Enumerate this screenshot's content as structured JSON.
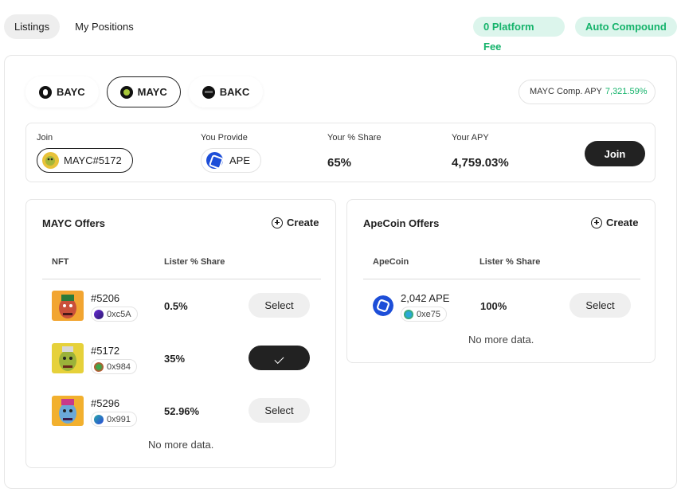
{
  "topnav": {
    "tabs": [
      "Listings",
      "My Positions"
    ],
    "badges": [
      "0 Platform Fee",
      "Auto Compound"
    ]
  },
  "coins": {
    "tabs": [
      "BAYC",
      "MAYC",
      "BAKC"
    ],
    "active": "MAYC"
  },
  "apy": {
    "label": "MAYC Comp. APY",
    "value": "7,321.59%"
  },
  "join": {
    "join_label": "Join",
    "nft": "MAYC#5172",
    "provide_label": "You Provide",
    "token": "APE",
    "share_label": "Your % Share",
    "share": "65%",
    "apy_label": "Your APY",
    "apy": "4,759.03%",
    "button": "Join"
  },
  "mayc_offers": {
    "title": "MAYC Offers",
    "create": "Create",
    "columns": [
      "NFT",
      "Lister % Share"
    ],
    "rows": [
      {
        "id": "#5206",
        "addr": "0xc5A",
        "share": "0.5%",
        "action": "Select"
      },
      {
        "id": "#5172",
        "addr": "0x984",
        "share": "35%",
        "action": ""
      },
      {
        "id": "#5296",
        "addr": "0x991",
        "share": "52.96%",
        "action": "Select"
      }
    ],
    "footer": "No more data."
  },
  "ape_offers": {
    "title": "ApeCoin Offers",
    "create": "Create",
    "columns": [
      "ApeCoin",
      "Lister % Share"
    ],
    "rows": [
      {
        "amount": "2,042 APE",
        "addr": "0xe75",
        "share": "100%",
        "action": "Select"
      }
    ],
    "footer": "No more data."
  },
  "colors": {
    "accent_green": "#15b36b",
    "green_bg": "#dcf5ec",
    "dark": "#222222",
    "ape_blue": "#1d4ed8"
  }
}
